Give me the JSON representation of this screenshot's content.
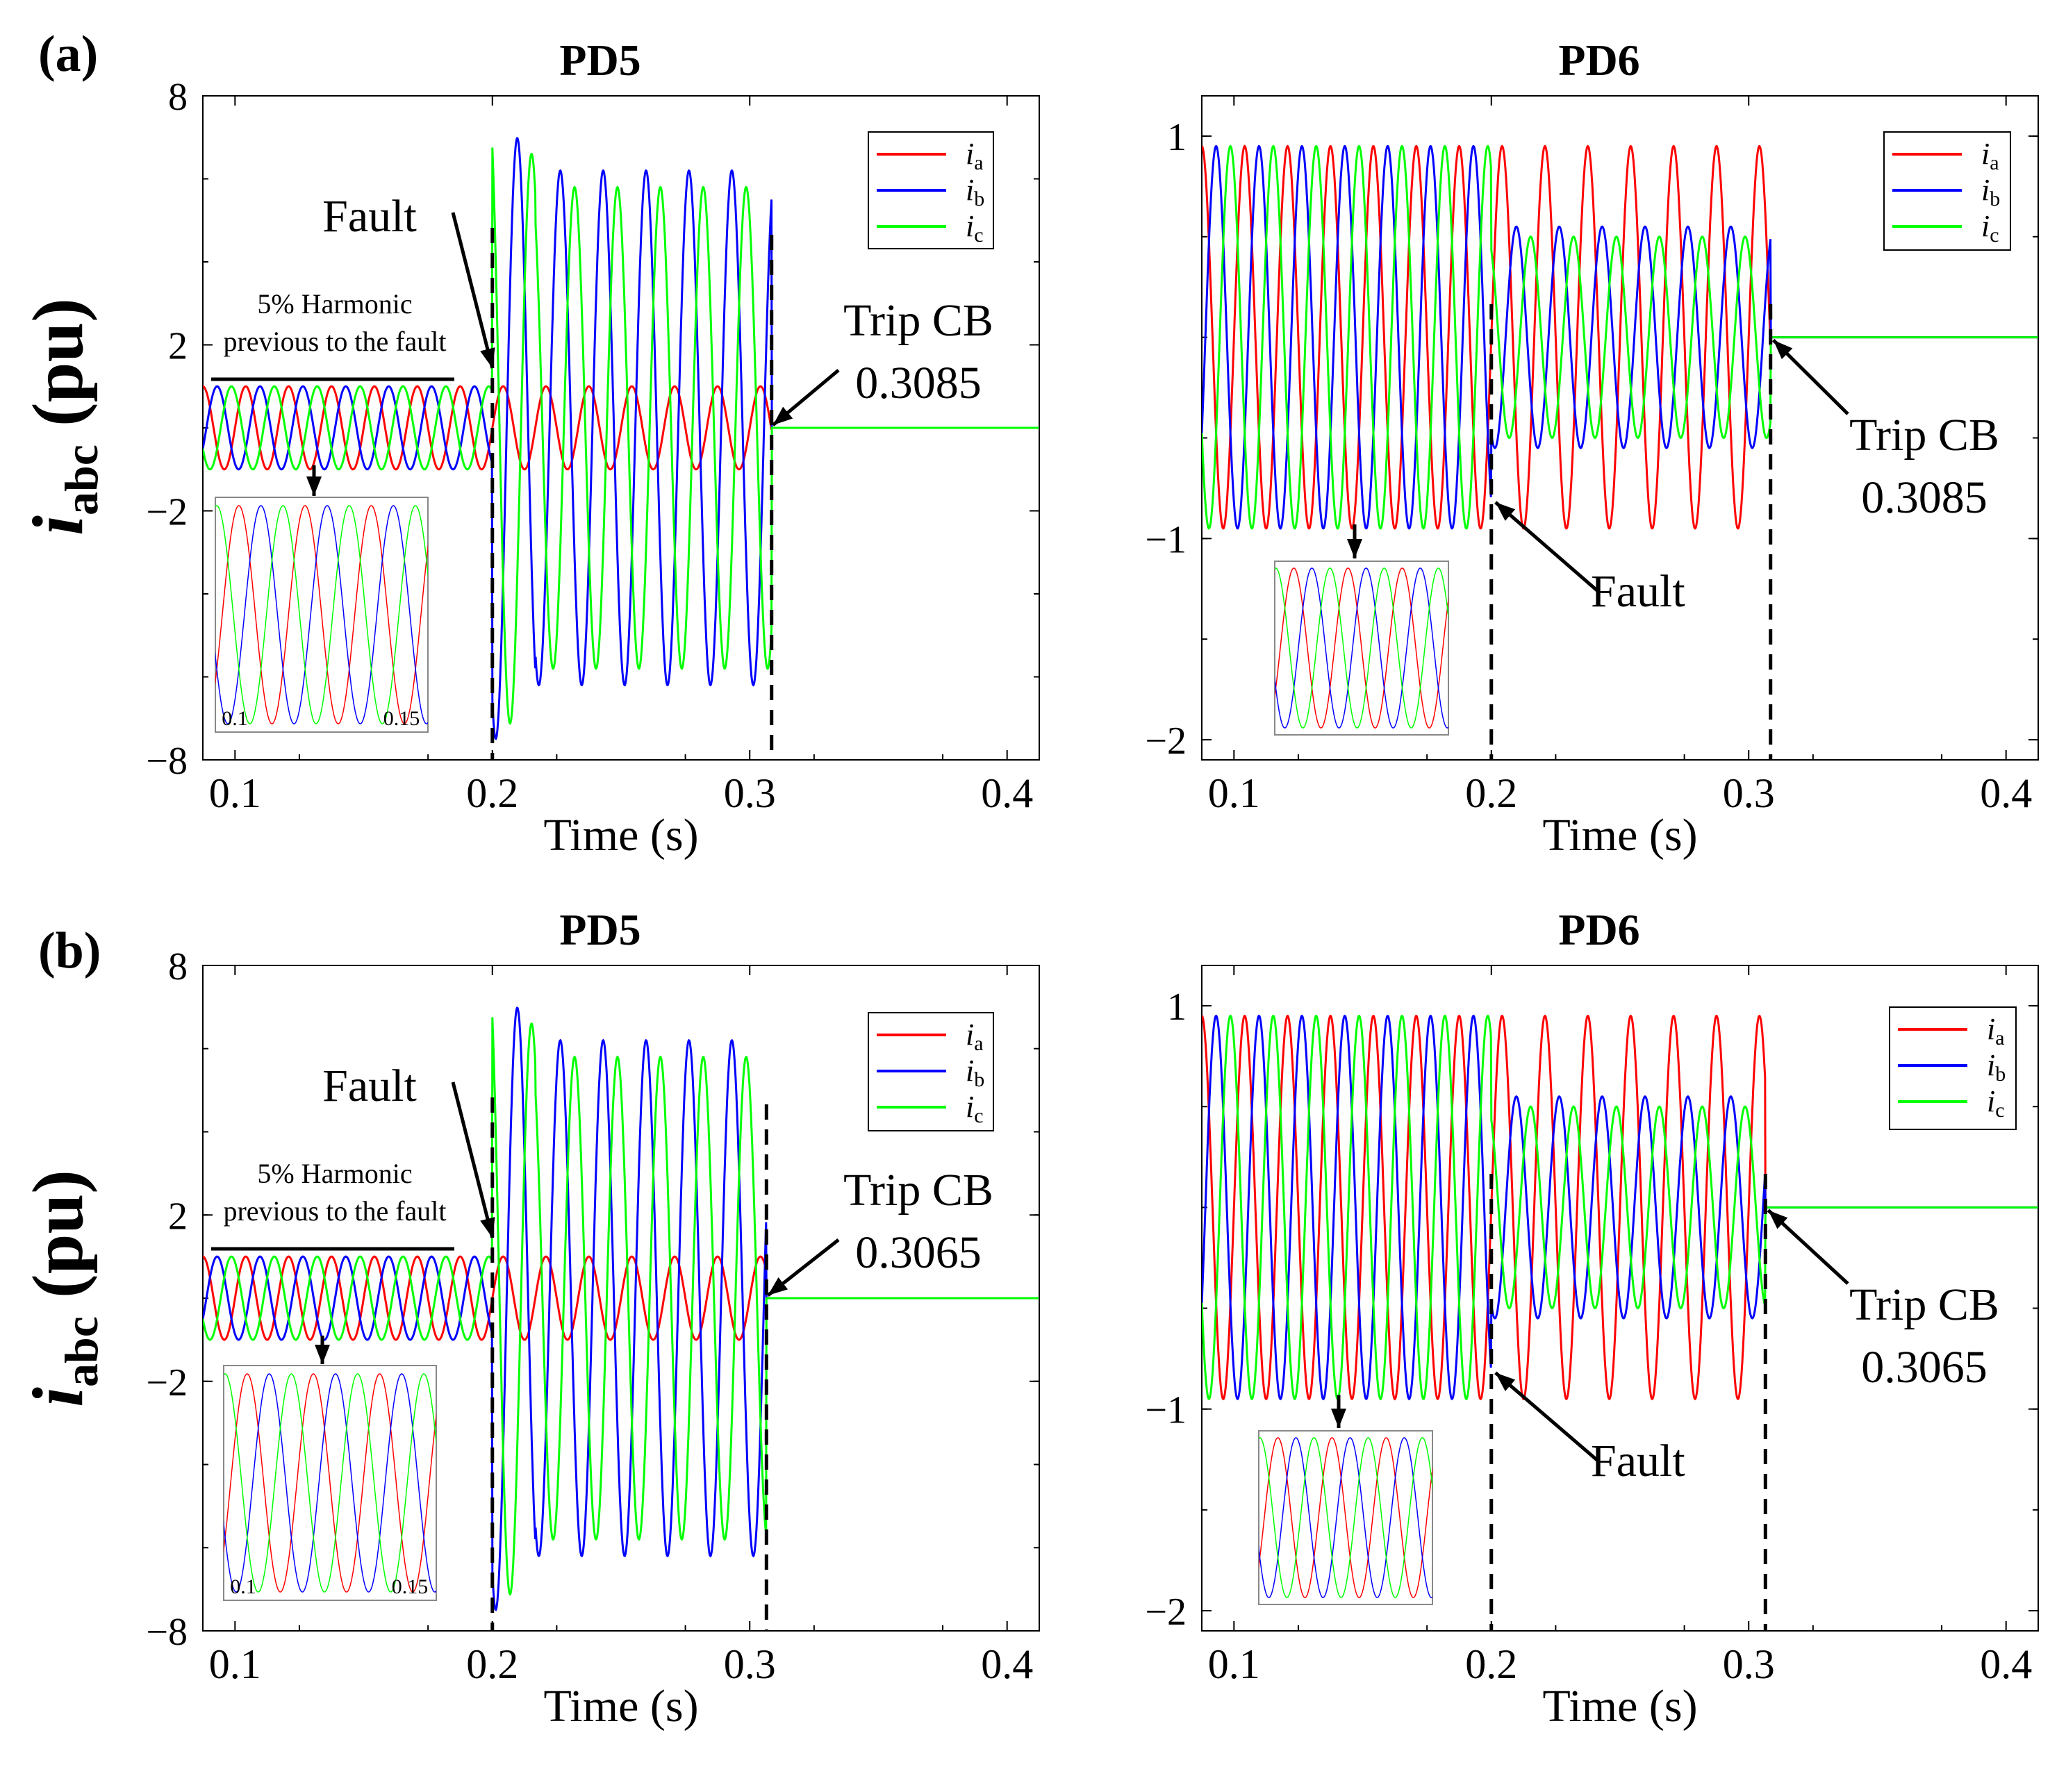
{
  "colors": {
    "ia": "#ff0000",
    "ib": "#0000ff",
    "ic": "#00ff00",
    "axis": "#000000"
  },
  "figure": {
    "rows": [
      {
        "label": "(a)",
        "ylabel_main": "i",
        "ylabel_sub": "abc",
        "ylabel_tail": " (pu)"
      },
      {
        "label": "(b)",
        "ylabel_main": "i",
        "ylabel_sub": "abc",
        "ylabel_tail": " (pu)"
      }
    ]
  },
  "chart_data": [
    {
      "id": "a-pd5",
      "type": "line",
      "title": "PD5",
      "xlabel": "Time (s)",
      "xlim": [
        0.0875,
        0.4125
      ],
      "ylim": [
        -8,
        8
      ],
      "xticks": [
        0.1,
        0.2,
        0.3,
        0.4
      ],
      "xtick_labels": [
        "0.1",
        "0.2",
        "0.3",
        "0.4"
      ],
      "yticks": [
        -8,
        -2,
        2,
        8
      ],
      "ytick_labels": [
        "−8",
        "−2",
        "2",
        "8"
      ],
      "series": [
        {
          "name": "a",
          "pre_amp": 1,
          "post_amp": 1,
          "phase_deg": 0,
          "offset": 0
        },
        {
          "name": "b",
          "pre_amp": 1,
          "post_amp": 6.2,
          "phase_deg": -120,
          "offset": 0,
          "peak": 7.6
        },
        {
          "name": "c",
          "pre_amp": 1,
          "post_amp": 5.8,
          "phase_deg": 120,
          "offset": 0,
          "peak": -7.8
        }
      ],
      "frequency_hz": 60,
      "fault_time": 0.2,
      "trip_time": 0.3085,
      "post_trip_value": 0,
      "annotations": {
        "fault": "Fault",
        "trip_line1": "Trip CB",
        "trip_line2": "0.3085",
        "harmonic_line1": "5% Harmonic",
        "harmonic_line2": "previous to the fault"
      },
      "inset": {
        "xlim": [
          0.1,
          0.15
        ],
        "xtick_labels": [
          "0.1",
          "0.15"
        ]
      }
    },
    {
      "id": "a-pd6",
      "type": "line",
      "title": "PD6",
      "xlabel": "Time (s)",
      "xlim": [
        0.0875,
        0.4125
      ],
      "ylim": [
        -2.1,
        1.2
      ],
      "xticks": [
        0.1,
        0.2,
        0.3,
        0.4
      ],
      "xtick_labels": [
        "0.1",
        "0.2",
        "0.3",
        "0.4"
      ],
      "yticks": [
        -2,
        -1,
        1
      ],
      "ytick_labels": [
        "−2",
        "−1",
        "1"
      ],
      "series": [
        {
          "name": "a",
          "pre_amp": 0.95,
          "post_amp": 0.95,
          "phase_deg": 0,
          "offset": 0
        },
        {
          "name": "b",
          "pre_amp": 0.95,
          "post_amp": 0.55,
          "phase_deg": -120,
          "offset": 0
        },
        {
          "name": "c",
          "pre_amp": 0.95,
          "post_amp": 0.5,
          "phase_deg": 120,
          "offset": 0
        }
      ],
      "frequency_hz": 60,
      "fault_time": 0.2,
      "trip_time": 0.3085,
      "post_trip_value": 0,
      "annotations": {
        "fault": "Fault",
        "trip_line1": "Trip CB",
        "trip_line2": "0.3085"
      }
    },
    {
      "id": "b-pd5",
      "type": "line",
      "title": "PD5",
      "xlabel": "Time (s)",
      "xlim": [
        0.0875,
        0.4125
      ],
      "ylim": [
        -8,
        8
      ],
      "xticks": [
        0.1,
        0.2,
        0.3,
        0.4
      ],
      "xtick_labels": [
        "0.1",
        "0.2",
        "0.3",
        "0.4"
      ],
      "yticks": [
        -8,
        -2,
        2,
        8
      ],
      "ytick_labels": [
        "−8",
        "−2",
        "2",
        "8"
      ],
      "series": [
        {
          "name": "a",
          "pre_amp": 1,
          "post_amp": 1,
          "phase_deg": 0,
          "offset": 0
        },
        {
          "name": "b",
          "pre_amp": 1,
          "post_amp": 6.2,
          "phase_deg": -120,
          "offset": 0,
          "peak": 7.6
        },
        {
          "name": "c",
          "pre_amp": 1,
          "post_amp": 5.8,
          "phase_deg": 120,
          "offset": 0,
          "peak": -7.8
        }
      ],
      "frequency_hz": 60,
      "fault_time": 0.2,
      "trip_time": 0.3065,
      "post_trip_value": 0,
      "annotations": {
        "fault": "Fault",
        "trip_line1": "Trip CB",
        "trip_line2": "0.3065",
        "harmonic_line1": "5% Harmonic",
        "harmonic_line2": "previous to the fault"
      },
      "inset": {
        "xlim": [
          0.1,
          0.15
        ],
        "xtick_labels": [
          "0.1",
          "0.15"
        ]
      }
    },
    {
      "id": "b-pd6",
      "type": "line",
      "title": "PD6",
      "xlabel": "Time (s)",
      "xlim": [
        0.0875,
        0.4125
      ],
      "ylim": [
        -2.1,
        1.2
      ],
      "xticks": [
        0.1,
        0.2,
        0.3,
        0.4
      ],
      "xtick_labels": [
        "0.1",
        "0.2",
        "0.3",
        "0.4"
      ],
      "yticks": [
        -2,
        -1,
        1
      ],
      "ytick_labels": [
        "−2",
        "−1",
        "1"
      ],
      "series": [
        {
          "name": "a",
          "pre_amp": 0.95,
          "post_amp": 0.95,
          "phase_deg": 0,
          "offset": 0
        },
        {
          "name": "b",
          "pre_amp": 0.95,
          "post_amp": 0.55,
          "phase_deg": -120,
          "offset": 0
        },
        {
          "name": "c",
          "pre_amp": 0.95,
          "post_amp": 0.5,
          "phase_deg": 120,
          "offset": 0
        }
      ],
      "frequency_hz": 60,
      "fault_time": 0.2,
      "trip_time": 0.3065,
      "post_trip_value": 0,
      "annotations": {
        "fault": "Fault",
        "trip_line1": "Trip CB",
        "trip_line2": "0.3065"
      }
    }
  ]
}
